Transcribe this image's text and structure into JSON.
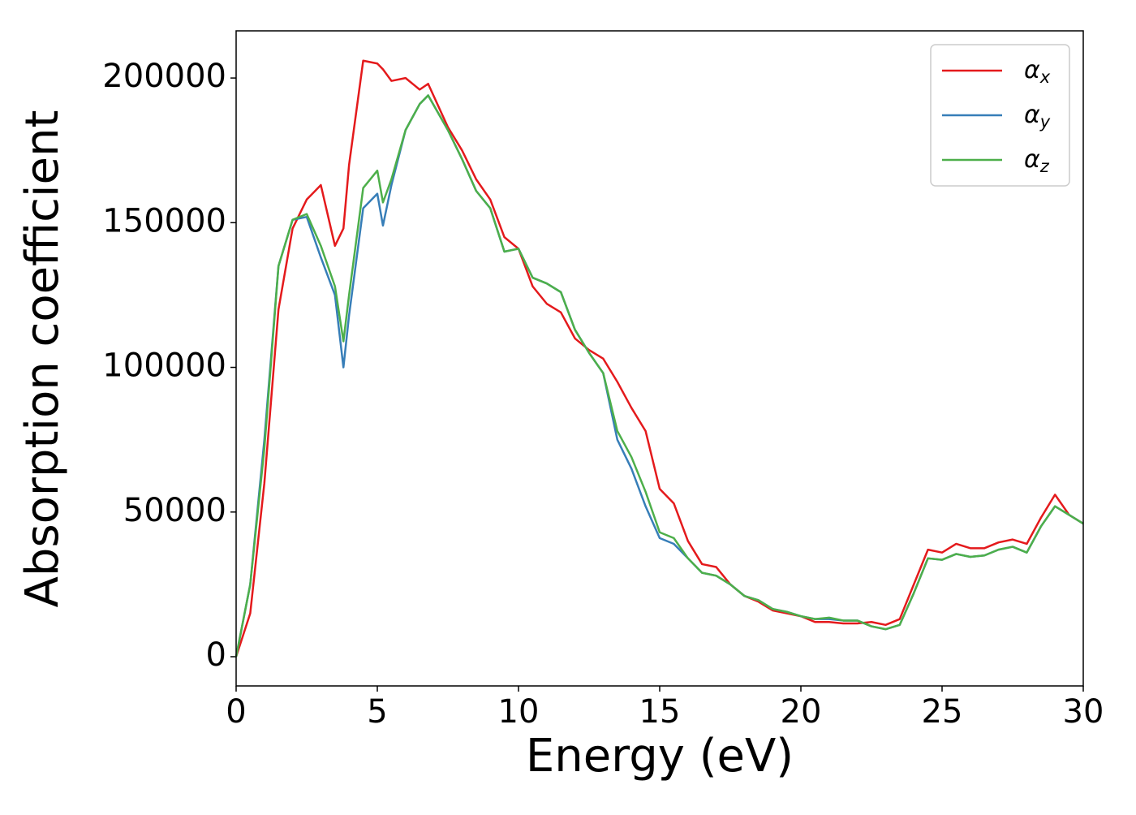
{
  "chart_data": {
    "type": "line",
    "xlabel": "Energy (eV)",
    "ylabel": "Absorption coefficient",
    "x": [
      0,
      0.5,
      1,
      1.5,
      2,
      2.5,
      3,
      3.5,
      3.8,
      4,
      4.5,
      5,
      5.2,
      5.5,
      6,
      6.5,
      6.8,
      7.5,
      8,
      8.5,
      9,
      9.5,
      10,
      10.5,
      11,
      11.5,
      12,
      12.5,
      13,
      13.5,
      14,
      14.5,
      15,
      15.5,
      16,
      16.5,
      17,
      17.5,
      18,
      18.5,
      19,
      19.5,
      20,
      20.5,
      21,
      21.5,
      22,
      22.5,
      23,
      23.5,
      24,
      24.5,
      25,
      25.5,
      26,
      26.5,
      27,
      27.5,
      28,
      28.5,
      29,
      29.5,
      30
    ],
    "series": [
      {
        "name": "αx",
        "color": "#e41a1c",
        "values": [
          0,
          15000,
          60000,
          120000,
          148000,
          158000,
          163000,
          142000,
          148000,
          170000,
          206000,
          205000,
          203000,
          199000,
          200000,
          196000,
          198000,
          183000,
          175000,
          165000,
          158000,
          145000,
          141000,
          128000,
          122000,
          119000,
          110000,
          106000,
          103000,
          95000,
          86000,
          78000,
          58000,
          53000,
          40000,
          32000,
          31000,
          25000,
          21000,
          19000,
          16000,
          15000,
          14000,
          12000,
          12000,
          11500,
          11500,
          12000,
          11000,
          13000,
          25000,
          37000,
          36000,
          39000,
          37500,
          37500,
          39500,
          40500,
          39000,
          48000,
          56000,
          49000,
          46000
        ]
      },
      {
        "name": "αy",
        "color": "#377eb8",
        "values": [
          0,
          25000,
          75000,
          135000,
          151000,
          152000,
          138000,
          125000,
          100000,
          118000,
          155000,
          160000,
          149000,
          163000,
          182000,
          191000,
          194000,
          182000,
          172000,
          161000,
          155000,
          140000,
          141000,
          131000,
          129000,
          126000,
          113000,
          105000,
          98000,
          75000,
          65000,
          52000,
          41000,
          39000,
          34000,
          29000,
          28000,
          25000,
          21000,
          19500,
          16500,
          15500,
          14000,
          13000,
          13000,
          12500,
          12500,
          10500,
          9500,
          11000,
          22000,
          34000,
          33500,
          35500,
          34500,
          35000,
          37000,
          38000,
          36000,
          45000,
          52000,
          49000,
          46000
        ]
      },
      {
        "name": "αz",
        "color": "#4daf4a",
        "values": [
          0,
          25000,
          72000,
          135000,
          151000,
          153000,
          142000,
          128000,
          109000,
          125000,
          162000,
          168000,
          157000,
          165000,
          182000,
          191000,
          194000,
          182000,
          172000,
          161000,
          155000,
          140000,
          141000,
          131000,
          129000,
          126000,
          113000,
          105000,
          98000,
          78000,
          69000,
          57000,
          43000,
          41000,
          34000,
          29000,
          28000,
          25000,
          21000,
          19500,
          16500,
          15500,
          14000,
          13000,
          13500,
          12500,
          12500,
          10500,
          9500,
          11000,
          22000,
          34000,
          33500,
          35500,
          34500,
          35000,
          37000,
          38000,
          36000,
          45000,
          52000,
          49000,
          46000
        ]
      }
    ],
    "xlim": [
      0,
      30
    ],
    "xticks": [
      0,
      5,
      10,
      15,
      20,
      25,
      30
    ],
    "ylim": [
      -10100,
      216300
    ],
    "yticks": [
      0,
      50000,
      100000,
      150000,
      200000
    ],
    "grid": false,
    "legend": "upper right"
  }
}
